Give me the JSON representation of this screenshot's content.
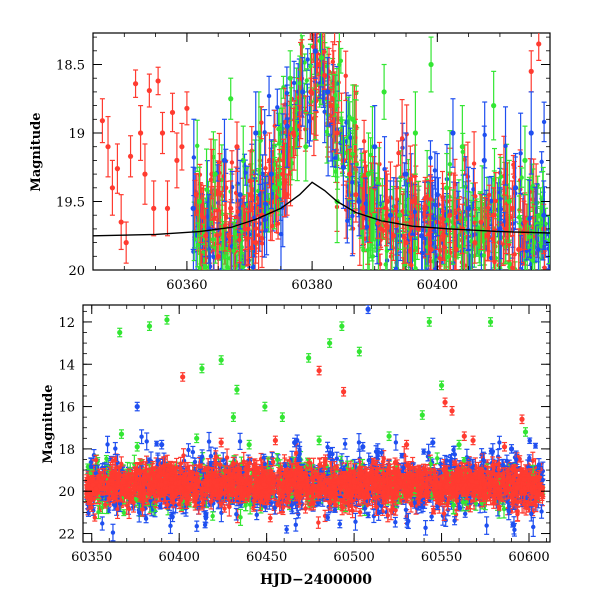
{
  "chart_data": [
    {
      "type": "scatter",
      "ylabel": "Magnitude",
      "xlabel": "",
      "xlim": [
        60345,
        60418
      ],
      "ylim": [
        20.0,
        18.27
      ],
      "y_inverted": true,
      "x_ticks": [
        60360,
        60380,
        60400
      ],
      "x_tick_labels": [
        "60360",
        "60380",
        "60400"
      ],
      "y_ticks": [
        18.5,
        19,
        19.5,
        20
      ],
      "y_tick_labels": [
        "18.5",
        "19",
        "19.5",
        "20"
      ],
      "grid": false,
      "legend": "none",
      "markers": "points with vertical error bars",
      "colors": {
        "red": "#ff3b30",
        "green": "#33e633",
        "blue": "#1f4ff0",
        "model": "#000000"
      },
      "model_curve": {
        "color": "#000000",
        "x": [
          60345,
          60355,
          60362,
          60367,
          60371,
          60375,
          60378,
          60380,
          60382,
          60384,
          60387,
          60391,
          60396,
          60402,
          60410,
          60418
        ],
        "y": [
          19.75,
          19.74,
          19.72,
          19.69,
          19.63,
          19.55,
          19.45,
          19.36,
          19.42,
          19.5,
          19.58,
          19.64,
          19.68,
          19.7,
          19.72,
          19.73
        ]
      },
      "series": [
        {
          "color": "red",
          "points": [
            [
              60346.5,
              18.91,
              0.16
            ],
            [
              60347.4,
              19.1,
              0.22
            ],
            [
              60348.1,
              19.4,
              0.2
            ],
            [
              60348.9,
              19.26,
              0.18
            ],
            [
              60349.5,
              19.65,
              0.2
            ],
            [
              60350.3,
              19.8,
              0.15
            ],
            [
              60351.0,
              19.17,
              0.15
            ],
            [
              60351.8,
              18.64,
              0.1
            ],
            [
              60352.6,
              19.0,
              0.2
            ],
            [
              60353.3,
              19.3,
              0.22
            ],
            [
              60354.0,
              18.69,
              0.12
            ],
            [
              60354.7,
              19.55,
              0.2
            ],
            [
              60355.4,
              18.62,
              0.1
            ],
            [
              60356.1,
              19.0,
              0.15
            ],
            [
              60356.9,
              19.55,
              0.2
            ],
            [
              60357.7,
              18.85,
              0.14
            ],
            [
              60358.4,
              19.2,
              0.2
            ],
            [
              60359.2,
              19.1,
              0.17
            ],
            [
              60360.0,
              18.82,
              0.12
            ],
            [
              60361.5,
              19.45,
              0.15
            ],
            [
              60362.3,
              19.6,
              0.2
            ],
            [
              60363.0,
              19.75,
              0.2
            ],
            [
              60364.0,
              19.3,
              0.18
            ],
            [
              60365.0,
              19.9,
              0.15
            ],
            [
              60366.2,
              19.4,
              0.2
            ],
            [
              60367.0,
              19.55,
              0.2
            ],
            [
              60368.0,
              19.1,
              0.18
            ],
            [
              60369.3,
              19.7,
              0.15
            ],
            [
              60370.1,
              19.35,
              0.22
            ],
            [
              60371.0,
              19.8,
              0.15
            ],
            [
              60372.0,
              19.6,
              0.18
            ],
            [
              60373.2,
              19.2,
              0.2
            ],
            [
              60374.0,
              19.5,
              0.18
            ],
            [
              60375.3,
              19.3,
              0.2
            ],
            [
              60376.0,
              19.45,
              0.15
            ],
            [
              60377.0,
              19.0,
              0.18
            ],
            [
              60378.0,
              18.95,
              0.15
            ],
            [
              60379.0,
              18.85,
              0.12
            ],
            [
              60379.8,
              18.7,
              0.1
            ],
            [
              60380.5,
              18.6,
              0.08
            ],
            [
              60381.2,
              18.5,
              0.08
            ],
            [
              60382.0,
              18.58,
              0.1
            ],
            [
              60383.0,
              18.8,
              0.12
            ],
            [
              60384.0,
              19.0,
              0.15
            ],
            [
              60385.0,
              19.2,
              0.18
            ],
            [
              60386.0,
              19.3,
              0.18
            ],
            [
              60387.0,
              19.45,
              0.2
            ],
            [
              60388.0,
              19.55,
              0.15
            ],
            [
              60389.2,
              19.6,
              0.2
            ],
            [
              60390.0,
              19.4,
              0.18
            ],
            [
              60391.0,
              19.7,
              0.15
            ],
            [
              60392.0,
              19.5,
              0.2
            ],
            [
              60393.0,
              19.75,
              0.18
            ],
            [
              60394.0,
              19.6,
              0.2
            ],
            [
              60395.0,
              19.8,
              0.15
            ],
            [
              60396.0,
              19.5,
              0.2
            ],
            [
              60397.0,
              19.7,
              0.18
            ],
            [
              60398.0,
              19.55,
              0.2
            ],
            [
              60399.0,
              19.85,
              0.15
            ],
            [
              60400.0,
              19.65,
              0.2
            ],
            [
              60401.0,
              19.75,
              0.18
            ],
            [
              60402.0,
              19.6,
              0.2
            ],
            [
              60403.0,
              19.85,
              0.15
            ],
            [
              60404.0,
              19.7,
              0.18
            ],
            [
              60405.0,
              19.55,
              0.2
            ],
            [
              60406.0,
              19.8,
              0.15
            ],
            [
              60407.0,
              19.65,
              0.2
            ],
            [
              60408.0,
              19.75,
              0.18
            ],
            [
              60409.0,
              19.6,
              0.2
            ],
            [
              60410.0,
              19.8,
              0.15
            ],
            [
              60411.0,
              19.7,
              0.18
            ],
            [
              60412.0,
              19.55,
              0.2
            ],
            [
              60413.0,
              19.85,
              0.15
            ],
            [
              60414.0,
              19.65,
              0.2
            ],
            [
              60415.0,
              18.55,
              0.15
            ],
            [
              60416.2,
              18.35,
              0.12
            ],
            [
              60417.0,
              19.7,
              0.18
            ]
          ]
        },
        {
          "color": "green",
          "points": [
            [
              60362.0,
              19.5,
              0.25
            ],
            [
              60364.5,
              19.3,
              0.25
            ],
            [
              60367.0,
              18.75,
              0.15
            ],
            [
              60369.0,
              19.2,
              0.25
            ],
            [
              60371.5,
              19.0,
              0.3
            ],
            [
              60374.0,
              19.4,
              0.3
            ],
            [
              60376.5,
              18.6,
              0.2
            ],
            [
              60379.0,
              19.1,
              0.25
            ],
            [
              60381.5,
              18.45,
              0.2
            ],
            [
              60384.0,
              19.5,
              0.3
            ],
            [
              60386.5,
              18.9,
              0.25
            ],
            [
              60389.0,
              19.3,
              0.3
            ],
            [
              60391.5,
              18.7,
              0.2
            ],
            [
              60394.0,
              19.6,
              0.25
            ],
            [
              60396.5,
              19.0,
              0.3
            ],
            [
              60399.0,
              18.5,
              0.2
            ],
            [
              60401.5,
              19.4,
              0.25
            ],
            [
              60404.0,
              19.1,
              0.3
            ],
            [
              60406.5,
              19.7,
              0.2
            ],
            [
              60409.0,
              18.8,
              0.25
            ],
            [
              60411.5,
              19.5,
              0.3
            ],
            [
              60414.0,
              19.2,
              0.25
            ],
            [
              60416.5,
              19.6,
              0.2
            ]
          ]
        },
        {
          "color": "blue",
          "points": [
            [
              60361.0,
              19.55,
              0.3
            ],
            [
              60363.5,
              19.7,
              0.25
            ],
            [
              60366.0,
              19.2,
              0.3
            ],
            [
              60368.5,
              19.45,
              0.25
            ],
            [
              60371.0,
              19.0,
              0.3
            ],
            [
              60373.5,
              19.3,
              0.25
            ],
            [
              60376.0,
              18.95,
              0.3
            ],
            [
              60378.5,
              18.7,
              0.25
            ],
            [
              60380.5,
              18.4,
              0.2
            ],
            [
              60382.5,
              18.7,
              0.25
            ],
            [
              60385.0,
              19.25,
              0.3
            ],
            [
              60387.5,
              19.5,
              0.25
            ],
            [
              60390.0,
              19.1,
              0.3
            ],
            [
              60392.5,
              19.6,
              0.25
            ],
            [
              60395.0,
              19.3,
              0.3
            ],
            [
              60397.5,
              19.75,
              0.25
            ],
            [
              60400.0,
              19.45,
              0.3
            ],
            [
              60402.5,
              19.0,
              0.25
            ],
            [
              60405.0,
              19.55,
              0.3
            ],
            [
              60407.5,
              19.2,
              0.25
            ],
            [
              60410.0,
              19.7,
              0.3
            ],
            [
              60412.5,
              19.4,
              0.25
            ],
            [
              60415.0,
              19.0,
              0.3
            ],
            [
              60417.0,
              19.6,
              0.25
            ]
          ]
        }
      ]
    },
    {
      "type": "scatter",
      "ylabel": "Magnitude",
      "xlabel": "HJD−2400000",
      "xlim": [
        60345,
        60612
      ],
      "ylim": [
        22.4,
        11.2
      ],
      "y_inverted": true,
      "x_ticks": [
        60350,
        60400,
        60450,
        60500,
        60550,
        60600
      ],
      "x_tick_labels": [
        "60350",
        "60400",
        "60450",
        "60500",
        "60550",
        "60600"
      ],
      "y_ticks": [
        12,
        14,
        16,
        18,
        20,
        22
      ],
      "y_tick_labels": [
        "12",
        "14",
        "16",
        "18",
        "20",
        "22"
      ],
      "grid": false,
      "legend": "none",
      "markers": "points with vertical error bars",
      "colors": {
        "red": "#ff3b30",
        "green": "#33e633",
        "blue": "#1f4ff0"
      },
      "band": {
        "x_range": [
          60347,
          60608
        ],
        "y_center": 19.7,
        "spread": 0.9,
        "note": "dense band of red, green and blue points"
      },
      "series": [
        {
          "color": "green",
          "points": [
            [
              60366,
              12.5,
              0.2
            ],
            [
              60383,
              12.2,
              0.2
            ],
            [
              60393,
              11.9,
              0.2
            ],
            [
              60413,
              14.2,
              0.2
            ],
            [
              60424,
              13.8,
              0.2
            ],
            [
              60431,
              16.5,
              0.2
            ],
            [
              60433,
              15.2,
              0.2
            ],
            [
              60449,
              16.0,
              0.2
            ],
            [
              60459,
              16.5,
              0.2
            ],
            [
              60474,
              13.7,
              0.2
            ],
            [
              60486,
              13.0,
              0.2
            ],
            [
              60493,
              12.2,
              0.2
            ],
            [
              60503,
              13.4,
              0.2
            ],
            [
              60539,
              16.4,
              0.2
            ],
            [
              60543,
              12.0,
              0.2
            ],
            [
              60550,
              15.0,
              0.2
            ],
            [
              60578,
              12.0,
              0.2
            ],
            [
              60598,
              17.2,
              0.2
            ],
            [
              60367,
              17.3,
              0.2
            ],
            [
              60376,
              17.9,
              0.2
            ],
            [
              60410,
              17.5,
              0.2
            ],
            [
              60440,
              17.8,
              0.2
            ],
            [
              60480,
              17.6,
              0.2
            ],
            [
              60520,
              17.4,
              0.2
            ],
            [
              60560,
              17.8,
              0.2
            ]
          ]
        },
        {
          "color": "red",
          "points": [
            [
              60402,
              14.6,
              0.2
            ],
            [
              60480,
              14.3,
              0.2
            ],
            [
              60494,
              15.3,
              0.2
            ],
            [
              60552,
              15.8,
              0.2
            ],
            [
              60556,
              16.2,
              0.2
            ],
            [
              60563,
              17.4,
              0.2
            ],
            [
              60568,
              17.6,
              0.2
            ],
            [
              60596,
              16.6,
              0.2
            ],
            [
              60424,
              17.7,
              0.2
            ],
            [
              60455,
              17.6,
              0.2
            ],
            [
              60530,
              17.8,
              0.2
            ],
            [
              60586,
              17.9,
              0.2
            ]
          ]
        },
        {
          "color": "blue",
          "points": [
            [
              60376,
              16.0,
              0.2
            ],
            [
              60508,
              11.4,
              0.2
            ],
            [
              60390,
              17.8,
              0.2
            ],
            [
              60466,
              17.7,
              0.2
            ],
            [
              60505,
              17.9,
              0.2
            ],
            [
              60545,
              17.7,
              0.2
            ],
            [
              60590,
              18.0,
              0.2
            ]
          ]
        }
      ]
    }
  ]
}
